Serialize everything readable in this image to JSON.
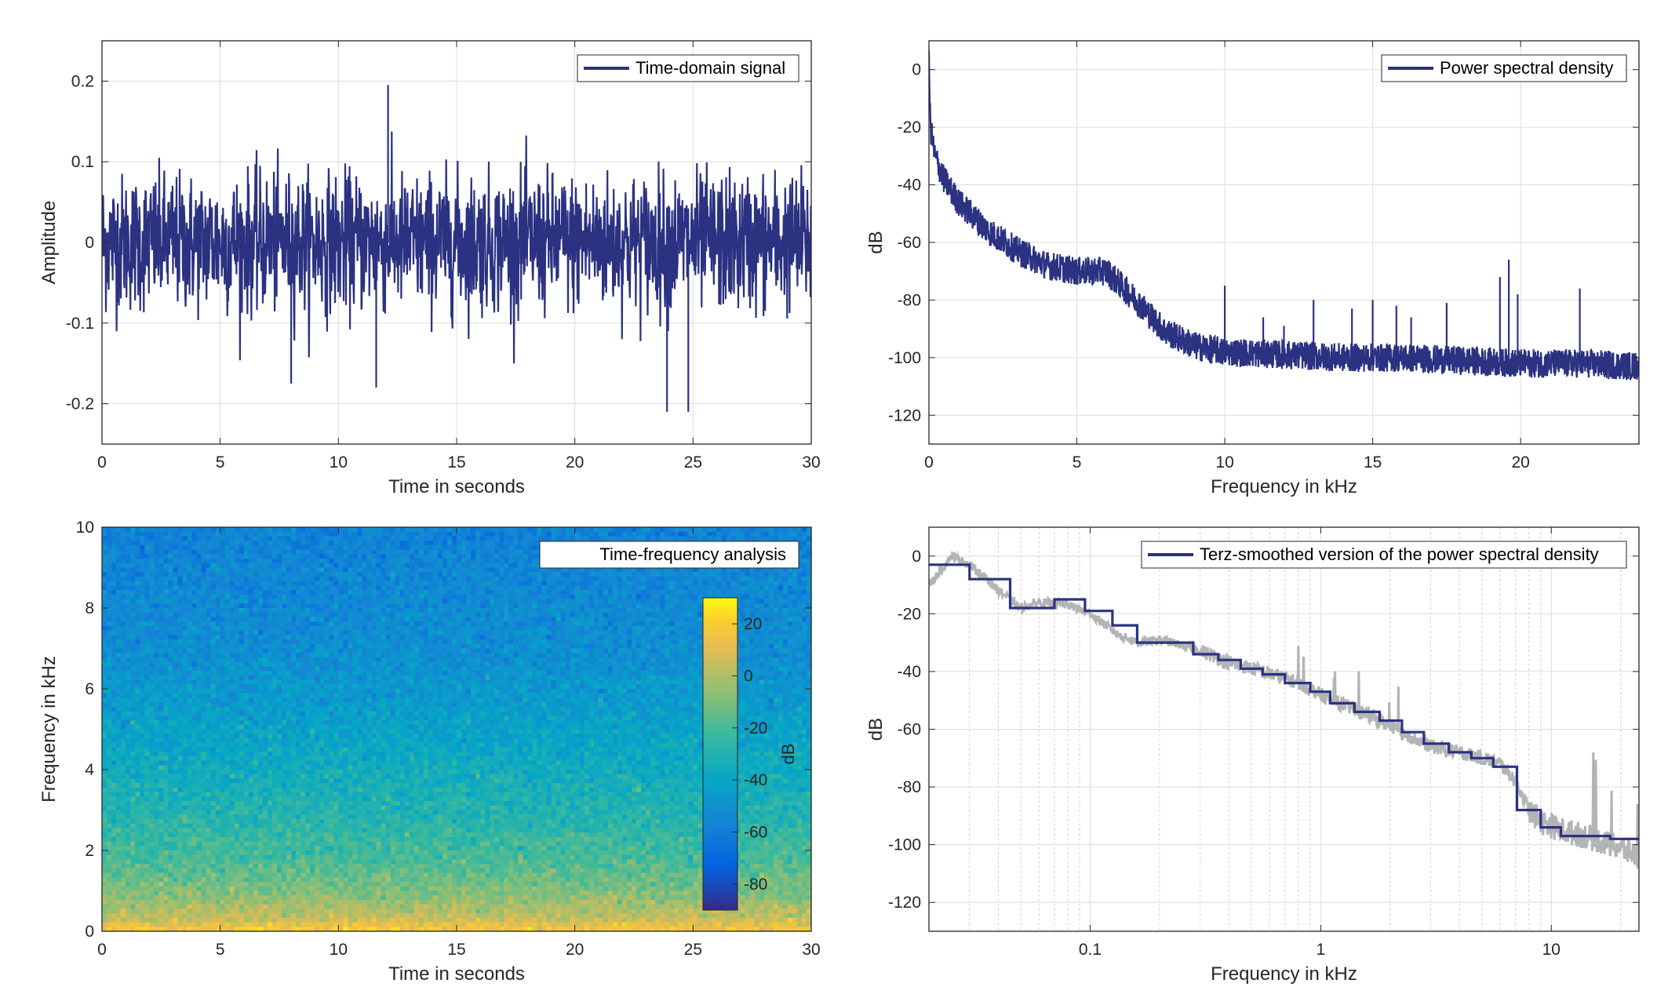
{
  "chart_data": [
    {
      "type": "line",
      "xlabel": "Time in seconds",
      "ylabel": "Amplitude",
      "xlim": [
        0,
        30
      ],
      "ylim": [
        -0.25,
        0.25
      ],
      "xticks": [
        0,
        5,
        10,
        15,
        20,
        25,
        30
      ],
      "xtick_labels": [
        "0",
        "5",
        "10",
        "15",
        "20",
        "25",
        "30"
      ],
      "yticks": [
        -0.2,
        -0.1,
        0,
        0.1,
        0.2
      ],
      "ytick_labels": [
        "-0.2",
        "-0.1",
        "0",
        "0.1",
        "0.2"
      ],
      "grid": true,
      "legend_position": "top-right",
      "color": "#2b3282",
      "series": [
        {
          "name": "Time-domain signal",
          "description_envelope": {
            "typical_abs_max": 0.1,
            "peaks": [
              [
                12.1,
                0.195
              ],
              [
                23.9,
                -0.21
              ],
              [
                24.8,
                -0.21
              ],
              [
                8.0,
                -0.175
              ],
              [
                11.6,
                -0.18
              ]
            ]
          }
        }
      ]
    },
    {
      "type": "line",
      "xlabel": "Frequency in kHz",
      "ylabel": "dB",
      "xlim": [
        0,
        24
      ],
      "ylim": [
        -130,
        10
      ],
      "xticks": [
        0,
        5,
        10,
        15,
        20
      ],
      "xtick_labels": [
        "0",
        "5",
        "10",
        "15",
        "20"
      ],
      "yticks": [
        -120,
        -100,
        -80,
        -60,
        -40,
        -20,
        0
      ],
      "ytick_labels": [
        "-120",
        "-100",
        "-80",
        "-60",
        "-40",
        "-20",
        "0"
      ],
      "grid": true,
      "legend_position": "top-right",
      "color": "#2b3282",
      "series": [
        {
          "name": "Power spectral density",
          "x": [
            0,
            0.05,
            0.2,
            0.5,
            1,
            2,
            3,
            4,
            5,
            6,
            7,
            8,
            9,
            10,
            12,
            14,
            16,
            18,
            20,
            22,
            24
          ],
          "y": [
            2,
            -20,
            -30,
            -38,
            -46,
            -56,
            -63,
            -68,
            -70,
            -70,
            -80,
            -91,
            -96,
            -98,
            -99,
            -100,
            -100,
            -101,
            -102,
            -102,
            -103
          ],
          "spikes": [
            [
              10,
              -75
            ],
            [
              11.3,
              -86
            ],
            [
              12.0,
              -89
            ],
            [
              13.0,
              -80
            ],
            [
              14.3,
              -83
            ],
            [
              15.0,
              -80
            ],
            [
              15.8,
              -82
            ],
            [
              16.3,
              -86
            ],
            [
              17.5,
              -81
            ],
            [
              19.3,
              -72
            ],
            [
              19.6,
              -66
            ],
            [
              19.9,
              -78
            ],
            [
              22.0,
              -76
            ]
          ]
        }
      ]
    },
    {
      "type": "heatmap",
      "xlabel": "Time in seconds",
      "ylabel": "Frequency in kHz",
      "xlim": [
        0,
        30
      ],
      "ylim": [
        0,
        10
      ],
      "xticks": [
        0,
        5,
        10,
        15,
        20,
        25,
        30
      ],
      "xtick_labels": [
        "0",
        "5",
        "10",
        "15",
        "20",
        "25",
        "30"
      ],
      "yticks": [
        0,
        2,
        4,
        6,
        8,
        10
      ],
      "ytick_labels": [
        "0",
        "2",
        "4",
        "6",
        "8",
        "10"
      ],
      "legend_position": "top-right",
      "legend_label": "Time-frequency analysis",
      "colorbar": {
        "label": "dB",
        "range": [
          -90,
          30
        ],
        "ticks": [
          20,
          0,
          -20,
          -40,
          -60,
          -80
        ],
        "tick_labels": [
          "20",
          "0",
          "-20",
          "-40",
          "-60",
          "-80"
        ],
        "position": "inside-right"
      },
      "frequency_profile_kHz_dB": [
        [
          0,
          20
        ],
        [
          0.3,
          5
        ],
        [
          1,
          -10
        ],
        [
          1.8,
          -20
        ],
        [
          3,
          -30
        ],
        [
          5,
          -42
        ],
        [
          7,
          -52
        ],
        [
          10,
          -58
        ]
      ]
    },
    {
      "type": "line",
      "xlabel": "Frequency in kHz",
      "ylabel": "dB",
      "xscale": "log",
      "xlim": [
        0.02,
        24
      ],
      "ylim": [
        -130,
        10
      ],
      "xticks": [
        0.1,
        1,
        10
      ],
      "xtick_labels": [
        "0.1",
        "1",
        "10"
      ],
      "yticks": [
        -120,
        -100,
        -80,
        -60,
        -40,
        -20,
        0
      ],
      "ytick_labels": [
        "-120",
        "-100",
        "-80",
        "-60",
        "-40",
        "-20",
        "0"
      ],
      "grid": true,
      "legend_position": "top-right",
      "series": [
        {
          "name": "Terz-smoothed version of the power spectral density",
          "color": "#2b3282",
          "step": true,
          "x": [
            0.02,
            0.03,
            0.045,
            0.07,
            0.095,
            0.125,
            0.16,
            0.2,
            0.28,
            0.36,
            0.45,
            0.56,
            0.7,
            0.9,
            1.1,
            1.4,
            1.8,
            2.25,
            2.8,
            3.6,
            4.5,
            5.6,
            7.1,
            9,
            11,
            14,
            18,
            24
          ],
          "y": [
            -3,
            -8,
            -18,
            -15,
            -19,
            -24,
            -30,
            -30,
            -34,
            -36,
            -39,
            -41,
            -44,
            -47,
            -51,
            -54,
            -57,
            -61,
            -65,
            -68,
            -70,
            -73,
            -88,
            -94,
            -97,
            -97,
            -98,
            -98
          ]
        },
        {
          "name": "",
          "color": "#b4b4b4",
          "x": [
            0.02,
            0.025,
            0.03,
            0.04,
            0.05,
            0.06,
            0.08,
            0.1,
            0.13,
            0.16,
            0.2,
            0.28,
            0.4,
            0.56,
            0.8,
            1.1,
            1.6,
            2.2,
            3,
            4.5,
            6,
            7,
            8,
            9,
            11,
            14,
            18,
            24
          ],
          "y": [
            -10,
            0,
            -3,
            -12,
            -18,
            -16,
            -17,
            -20,
            -27,
            -30,
            -29,
            -32,
            -37,
            -40,
            -44,
            -50,
            -55,
            -61,
            -66,
            -69,
            -72,
            -78,
            -88,
            -92,
            -95,
            -97,
            -100,
            -104
          ]
        }
      ]
    }
  ]
}
